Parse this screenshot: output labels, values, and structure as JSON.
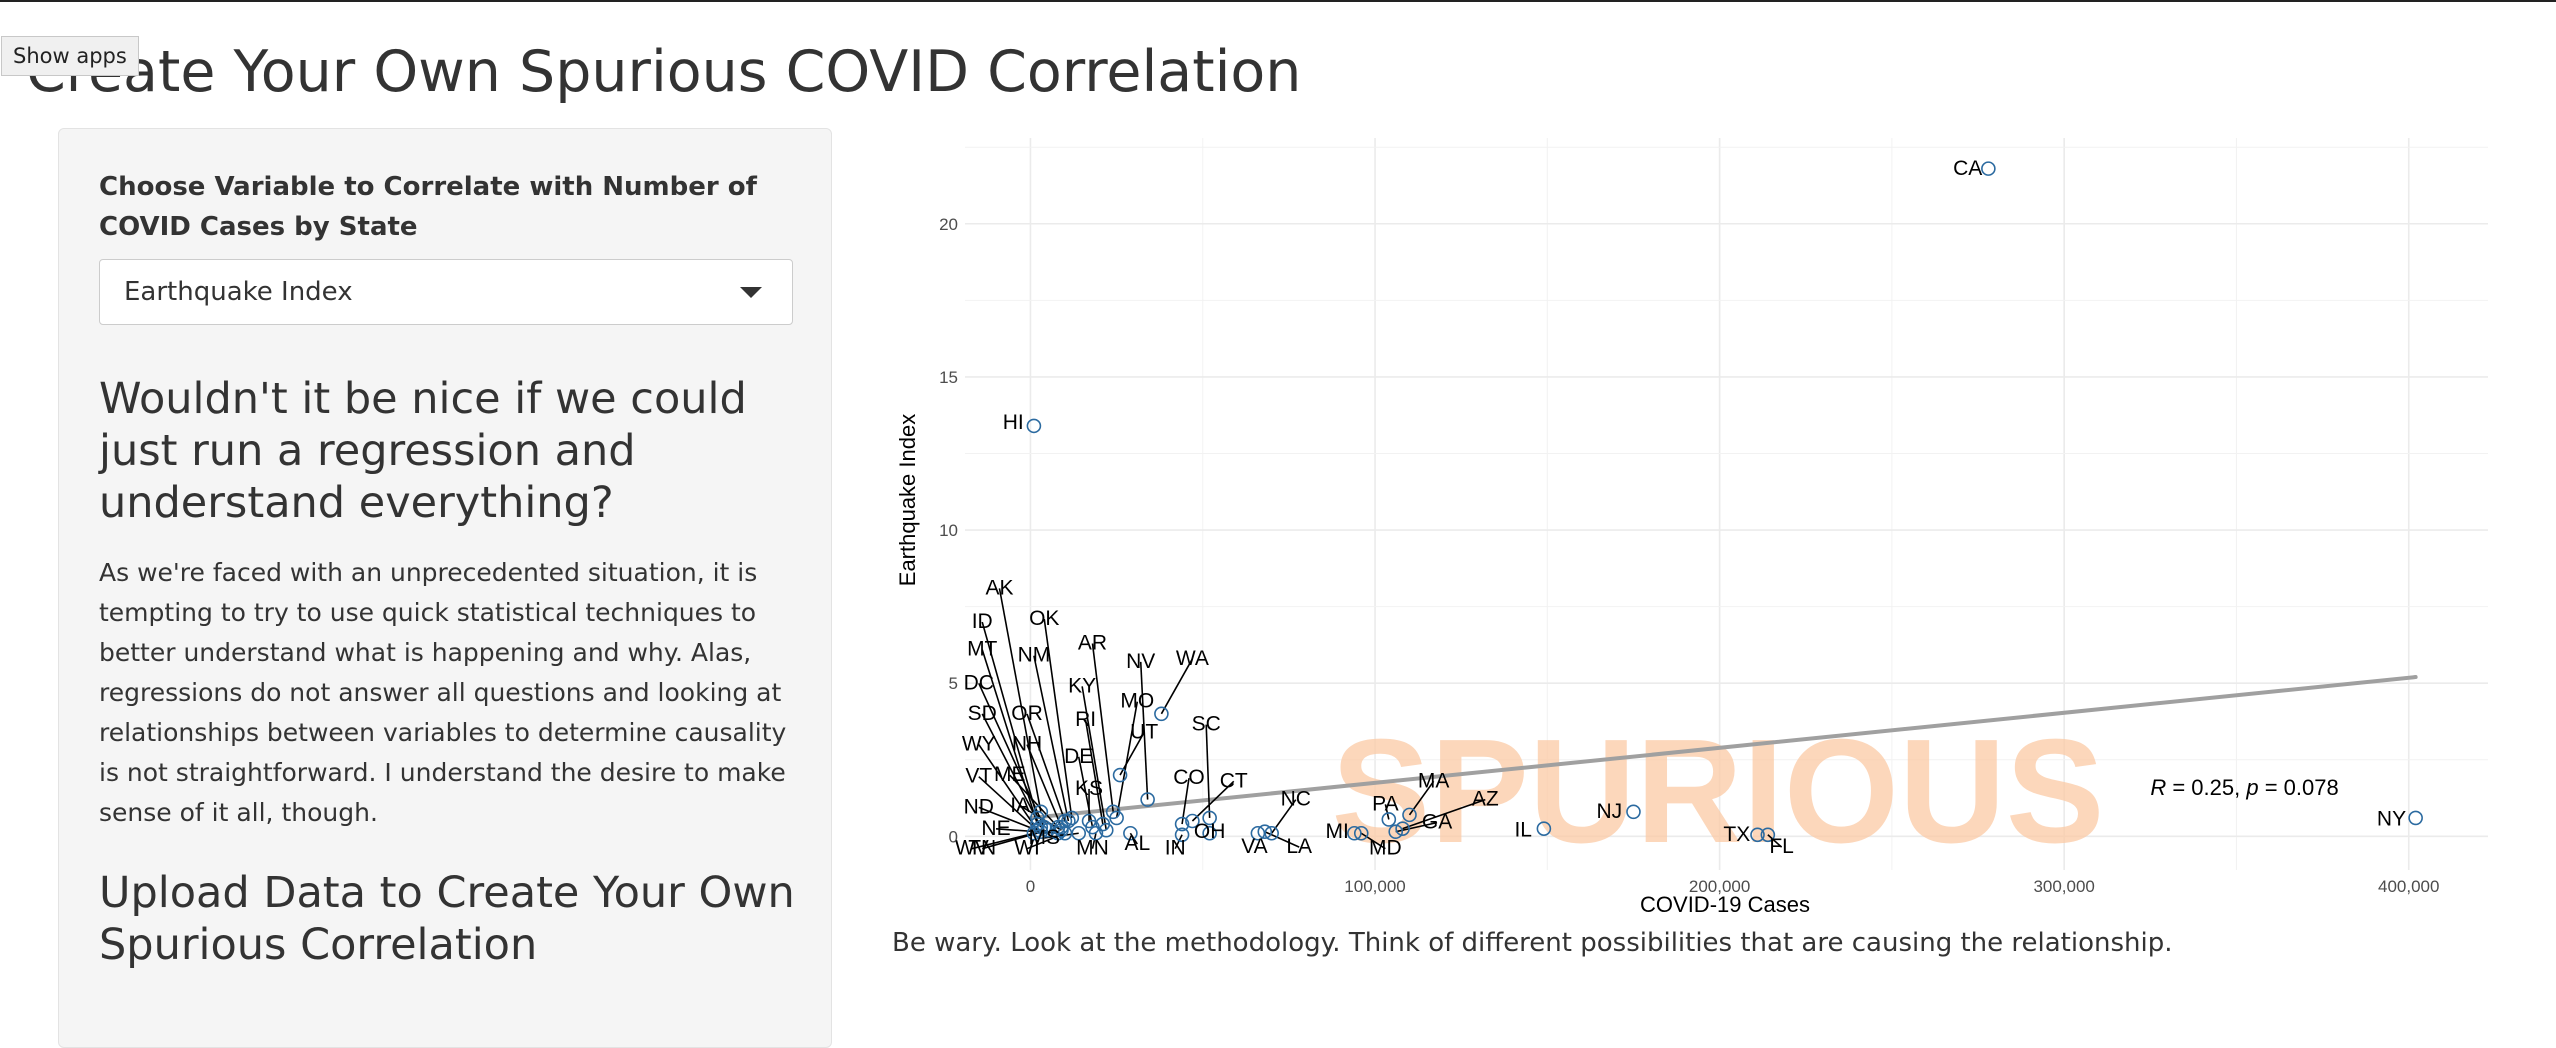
{
  "tooltip": "Show apps",
  "page_title": "Create Your Own Spurious COVID Correlation",
  "sidebar": {
    "select_label": "Choose Variable to Correlate with Number of COVID Cases by State",
    "selected_value": "Earthquake Index",
    "heading": "Wouldn't it be nice if we could just run a regression and understand everything?",
    "paragraph": "As we're faced with an unprecedented situation, it is tempting to try to use quick statistical techniques to better understand what is happening and why. Alas, regressions do not answer all questions and looking at relationships between variables to determine causality is not straightforward. I understand the desire to make sense of it all, though.",
    "upload_heading": "Upload Data to Create Your Own Spurious Correlation"
  },
  "caption": "Be wary. Look at the methodology. Think of different possibilities that are causing the relationship.",
  "colors": {
    "point": "#2b6aa0",
    "trend": "#a0a0a0",
    "watermark": "#fbc9a4",
    "grid": "#ebebeb"
  },
  "chart_data": {
    "type": "scatter",
    "xlabel": "COVID-19 Cases",
    "ylabel": "Earthquake Index",
    "x_ticks": [
      0,
      100000,
      200000,
      300000,
      400000
    ],
    "x_tick_labels": [
      "0",
      "100,000",
      "200,000",
      "300,000",
      "400,000"
    ],
    "y_ticks": [
      0,
      5,
      10,
      15,
      20
    ],
    "y_tick_labels": [
      "0",
      "5",
      "10",
      "15",
      "20"
    ],
    "xlim": [
      -19000,
      423000
    ],
    "ylim": [
      -1.1,
      22.8
    ],
    "watermark": "SPURIOUS",
    "annotation": {
      "r": "0.25",
      "p": "0.078",
      "x": 325000,
      "y": 1.35
    },
    "trend_line": {
      "x": [
        0,
        402000
      ],
      "y": [
        0.6,
        5.2
      ]
    },
    "points": [
      {
        "state": "CA",
        "x": 278000,
        "y": 21.8,
        "lx": 272000,
        "ly": 21.6,
        "leader": false
      },
      {
        "state": "HI",
        "x": 1000,
        "y": 13.4,
        "lx": -5000,
        "ly": 13.3,
        "leader": false
      },
      {
        "state": "NY",
        "x": 402000,
        "y": 0.6,
        "lx": 395000,
        "ly": 0.35,
        "leader": false
      },
      {
        "state": "NJ",
        "x": 175000,
        "y": 0.8,
        "lx": 168000,
        "ly": 0.6,
        "leader": false
      },
      {
        "state": "IL",
        "x": 149000,
        "y": 0.25,
        "lx": 143000,
        "ly": 0.0,
        "leader": false
      },
      {
        "state": "TX",
        "x": 211000,
        "y": 0.05,
        "lx": 205000,
        "ly": -0.15,
        "leader": false
      },
      {
        "state": "FL",
        "x": 214000,
        "y": 0.05,
        "lx": 218000,
        "ly": -0.55,
        "leader": true
      },
      {
        "state": "MA",
        "x": 110000,
        "y": 0.7,
        "lx": 117000,
        "ly": 1.6,
        "leader": true
      },
      {
        "state": "PA",
        "x": 104000,
        "y": 0.55,
        "lx": 103000,
        "ly": 0.85,
        "leader": true
      },
      {
        "state": "AZ",
        "x": 108000,
        "y": 0.25,
        "lx": 132000,
        "ly": 1.0,
        "leader": true
      },
      {
        "state": "GA",
        "x": 106000,
        "y": 0.15,
        "lx": 118000,
        "ly": 0.25,
        "leader": true
      },
      {
        "state": "MD",
        "x": 96000,
        "y": 0.1,
        "lx": 103000,
        "ly": -0.6,
        "leader": true
      },
      {
        "state": "MI",
        "x": 94000,
        "y": 0.1,
        "lx": 89000,
        "ly": -0.05,
        "leader": false
      },
      {
        "state": "NC",
        "x": 70000,
        "y": 0.1,
        "lx": 77000,
        "ly": 1.0,
        "leader": true
      },
      {
        "state": "LA",
        "x": 68000,
        "y": 0.15,
        "lx": 78000,
        "ly": -0.55,
        "leader": true
      },
      {
        "state": "VA",
        "x": 66000,
        "y": 0.1,
        "lx": 65000,
        "ly": -0.55,
        "leader": false
      },
      {
        "state": "SC",
        "x": 52000,
        "y": 0.6,
        "lx": 51000,
        "ly": 3.45,
        "leader": true
      },
      {
        "state": "OH",
        "x": 52000,
        "y": 0.1,
        "lx": 52000,
        "ly": -0.05,
        "leader": false
      },
      {
        "state": "IN",
        "x": 44000,
        "y": 0.05,
        "lx": 42000,
        "ly": -0.6,
        "leader": true
      },
      {
        "state": "CT",
        "x": 47000,
        "y": 0.5,
        "lx": 59000,
        "ly": 1.6,
        "leader": true
      },
      {
        "state": "CO",
        "x": 44000,
        "y": 0.4,
        "lx": 46000,
        "ly": 1.7,
        "leader": true
      },
      {
        "state": "WA",
        "x": 38000,
        "y": 4.0,
        "lx": 47000,
        "ly": 5.6,
        "leader": true
      },
      {
        "state": "NV",
        "x": 34000,
        "y": 1.2,
        "lx": 32000,
        "ly": 5.5,
        "leader": true
      },
      {
        "state": "AL",
        "x": 29000,
        "y": 0.1,
        "lx": 31000,
        "ly": -0.45,
        "leader": true
      },
      {
        "state": "MO",
        "x": 25000,
        "y": 0.6,
        "lx": 31000,
        "ly": 4.2,
        "leader": true
      },
      {
        "state": "UT",
        "x": 26000,
        "y": 2.0,
        "lx": 33000,
        "ly": 3.2,
        "leader": true
      },
      {
        "state": "AR",
        "x": 24000,
        "y": 0.8,
        "lx": 18000,
        "ly": 6.1,
        "leader": true
      },
      {
        "state": "KY",
        "x": 22000,
        "y": 0.2,
        "lx": 15000,
        "ly": 4.7,
        "leader": true
      },
      {
        "state": "RI",
        "x": 21000,
        "y": 0.4,
        "lx": 16000,
        "ly": 3.6,
        "leader": true
      },
      {
        "state": "DE",
        "x": 18000,
        "y": 0.3,
        "lx": 14000,
        "ly": 2.4,
        "leader": true
      },
      {
        "state": "KS",
        "x": 17000,
        "y": 0.5,
        "lx": 17000,
        "ly": 1.35,
        "leader": true
      },
      {
        "state": "MN",
        "x": 19000,
        "y": 0.1,
        "lx": 18000,
        "ly": -0.6,
        "leader": true
      },
      {
        "state": "MS",
        "x": 14000,
        "y": 0.1,
        "lx": 4000,
        "ly": -0.25,
        "leader": true
      },
      {
        "state": "OK",
        "x": 12000,
        "y": 0.6,
        "lx": 4000,
        "ly": 6.9,
        "leader": true
      },
      {
        "state": "NM",
        "x": 11000,
        "y": 0.5,
        "lx": 1000,
        "ly": 5.7,
        "leader": true
      },
      {
        "state": "OR",
        "x": 10000,
        "y": 0.5,
        "lx": -1000,
        "ly": 3.8,
        "leader": true
      },
      {
        "state": "NH",
        "x": 9000,
        "y": 0.3,
        "lx": -1000,
        "ly": 2.8,
        "leader": true
      },
      {
        "state": "ME",
        "x": 8000,
        "y": 0.3,
        "lx": -6000,
        "ly": 1.8,
        "leader": true
      },
      {
        "state": "IA",
        "x": 9000,
        "y": 0.2,
        "lx": -3000,
        "ly": 0.8,
        "leader": true
      },
      {
        "state": "NE",
        "x": 8000,
        "y": 0.1,
        "lx": -10000,
        "ly": 0.05,
        "leader": true
      },
      {
        "state": "WI",
        "x": 10000,
        "y": 0.1,
        "lx": -1000,
        "ly": -0.6,
        "leader": true
      },
      {
        "state": "TN",
        "x": 5000,
        "y": 0.2,
        "lx": -14000,
        "ly": -0.6,
        "leader": true
      },
      {
        "state": "AK",
        "x": 3000,
        "y": 0.8,
        "lx": -9000,
        "ly": 7.9,
        "leader": true
      },
      {
        "state": "ID",
        "x": 2000,
        "y": 0.6,
        "lx": -14000,
        "ly": 6.8,
        "leader": true
      },
      {
        "state": "MT",
        "x": 2000,
        "y": 0.4,
        "lx": -14000,
        "ly": 5.9,
        "leader": true
      },
      {
        "state": "DC",
        "x": 4000,
        "y": 0.3,
        "lx": -15000,
        "ly": 4.8,
        "leader": true
      },
      {
        "state": "SD",
        "x": 3000,
        "y": 0.3,
        "lx": -14000,
        "ly": 3.8,
        "leader": true
      },
      {
        "state": "WY",
        "x": 2000,
        "y": 0.2,
        "lx": -15000,
        "ly": 2.8,
        "leader": true
      },
      {
        "state": "VT",
        "x": 2000,
        "y": 0.2,
        "lx": -15000,
        "ly": 1.75,
        "leader": true
      },
      {
        "state": "ND",
        "x": 3000,
        "y": 0.15,
        "lx": -15000,
        "ly": 0.75,
        "leader": true
      },
      {
        "state": "WV",
        "x": 1000,
        "y": 0.1,
        "lx": -17000,
        "ly": -0.6,
        "leader": true
      }
    ]
  }
}
